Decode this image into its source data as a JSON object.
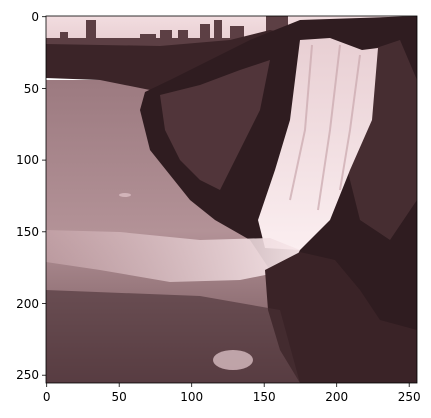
{
  "image": {
    "description_tint": "sepia-pink monochrome",
    "palette": {
      "sky": "#f0d9dc",
      "water": "#a8858b",
      "cliff_dark": "#2b1a1d",
      "cliff_mid": "#5a3c41",
      "falls": "#f3dde1",
      "foreground": "#3a2327"
    }
  },
  "axes": {
    "x_ticks": [
      "0",
      "50",
      "100",
      "150",
      "200",
      "250"
    ],
    "y_ticks": [
      "0",
      "50",
      "100",
      "150",
      "200",
      "250"
    ],
    "x_values": [
      0,
      50,
      100,
      150,
      200,
      250
    ],
    "y_values": [
      0,
      50,
      100,
      150,
      200,
      250
    ],
    "xlim": [
      -0.5,
      255.5
    ],
    "ylim": [
      255.5,
      -0.5
    ]
  }
}
